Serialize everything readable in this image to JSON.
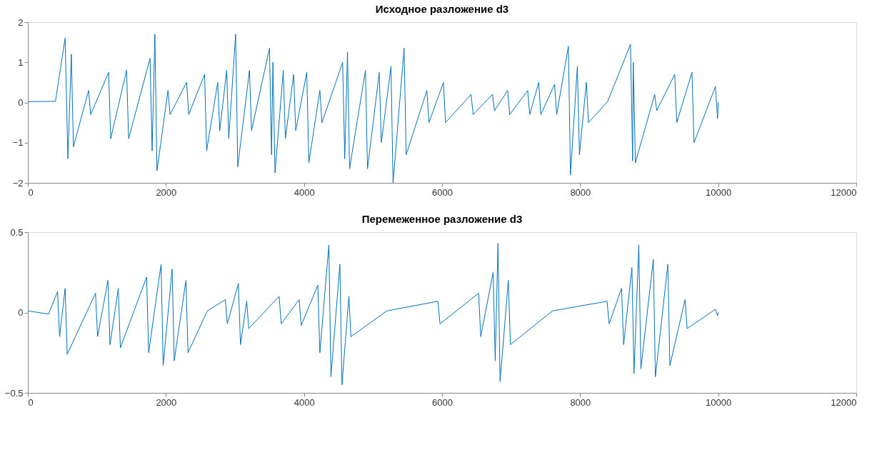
{
  "chart_data": [
    {
      "type": "line",
      "title": "Исходное разложение d3",
      "color": "#0072bd",
      "line_style": "solid",
      "xlim": [
        0,
        12000
      ],
      "xticks": [
        0,
        2000,
        4000,
        6000,
        8000,
        10000,
        12000
      ],
      "ylim": [
        -2,
        2
      ],
      "yticks": [
        -2,
        -1,
        0,
        1,
        2
      ],
      "x": [
        0,
        400,
        540,
        580,
        630,
        660,
        880,
        910,
        1170,
        1200,
        1430,
        1460,
        1770,
        1800,
        1840,
        1870,
        2030,
        2060,
        2300,
        2330,
        2560,
        2590,
        2750,
        2780,
        2880,
        2910,
        3010,
        3040,
        3210,
        3240,
        3500,
        3530,
        3550,
        3580,
        3700,
        3730,
        3850,
        3880,
        4040,
        4070,
        4230,
        4260,
        4560,
        4590,
        4630,
        4660,
        4890,
        4920,
        5090,
        5120,
        5260,
        5290,
        5450,
        5480,
        5780,
        5810,
        6020,
        6050,
        6420,
        6450,
        6730,
        6760,
        6950,
        6980,
        7240,
        7270,
        7400,
        7430,
        7630,
        7660,
        7830,
        7860,
        7960,
        7990,
        8090,
        8120,
        8400,
        8730,
        8760,
        8770,
        8800,
        9080,
        9110,
        9370,
        9400,
        9620,
        9650,
        9960,
        9990,
        10000
      ],
      "values": [
        0.02,
        0.03,
        1.6,
        -1.4,
        1.2,
        -1.1,
        0.3,
        -0.3,
        0.75,
        -0.9,
        0.8,
        -0.9,
        1.1,
        -1.2,
        1.7,
        -1.7,
        0.3,
        -0.3,
        0.5,
        -0.3,
        0.7,
        -1.2,
        0.5,
        -0.7,
        0.8,
        -0.9,
        1.7,
        -1.6,
        0.8,
        -0.7,
        1.35,
        -1.3,
        1.0,
        -1.75,
        0.8,
        -0.9,
        0.7,
        -0.7,
        0.75,
        -1.5,
        0.3,
        -0.5,
        1.0,
        -1.4,
        1.25,
        -1.65,
        0.8,
        -1.65,
        0.75,
        -1.0,
        0.9,
        -2.0,
        1.35,
        -1.3,
        0.3,
        -0.5,
        0.5,
        -0.5,
        0.2,
        -0.3,
        0.2,
        -0.2,
        0.3,
        -0.3,
        0.3,
        -0.3,
        0.5,
        -0.3,
        0.45,
        -0.3,
        1.4,
        -1.8,
        0.9,
        -1.3,
        0.5,
        -0.5,
        0.03,
        1.45,
        -1.45,
        1.0,
        -1.5,
        0.2,
        -0.2,
        0.7,
        -0.5,
        0.75,
        -1.0,
        0.4,
        -0.4,
        0.0
      ]
    },
    {
      "type": "line",
      "title": "Перемеженное разложение d3",
      "color": "#0072bd",
      "line_style": "solid",
      "xlim": [
        0,
        12000
      ],
      "xticks": [
        0,
        2000,
        4000,
        6000,
        8000,
        10000,
        12000
      ],
      "ylim": [
        -0.5,
        0.5
      ],
      "yticks": [
        -0.5,
        0,
        0.5
      ],
      "x": [
        0,
        300,
        430,
        460,
        540,
        570,
        980,
        1010,
        1160,
        1190,
        1310,
        1340,
        1720,
        1750,
        1930,
        1960,
        2090,
        2120,
        2290,
        2320,
        2600,
        2860,
        2890,
        3050,
        3080,
        3170,
        3200,
        3640,
        3670,
        3930,
        3960,
        4200,
        4230,
        4360,
        4390,
        4520,
        4550,
        4650,
        4680,
        5200,
        5940,
        5970,
        6530,
        6560,
        6740,
        6770,
        6810,
        6840,
        6960,
        6990,
        7600,
        8390,
        8420,
        8600,
        8630,
        8750,
        8780,
        8850,
        8880,
        9060,
        9090,
        9270,
        9300,
        9520,
        9550,
        9960,
        9990,
        10000
      ],
      "values": [
        0.01,
        -0.01,
        0.13,
        -0.15,
        0.15,
        -0.26,
        0.12,
        -0.15,
        0.2,
        -0.2,
        0.15,
        -0.22,
        0.22,
        -0.25,
        0.3,
        -0.33,
        0.27,
        -0.3,
        0.2,
        -0.25,
        0.01,
        0.08,
        -0.07,
        0.18,
        -0.2,
        0.07,
        -0.1,
        0.1,
        -0.07,
        0.08,
        -0.08,
        0.17,
        -0.25,
        0.42,
        -0.4,
        0.3,
        -0.45,
        0.1,
        -0.15,
        0.01,
        0.07,
        -0.07,
        0.12,
        -0.15,
        0.25,
        -0.3,
        0.43,
        -0.43,
        0.2,
        -0.2,
        0.01,
        0.07,
        -0.07,
        0.15,
        -0.2,
        0.28,
        -0.38,
        0.42,
        -0.35,
        0.33,
        -0.4,
        0.3,
        -0.33,
        0.08,
        -0.1,
        0.02,
        -0.02,
        0
      ]
    }
  ]
}
